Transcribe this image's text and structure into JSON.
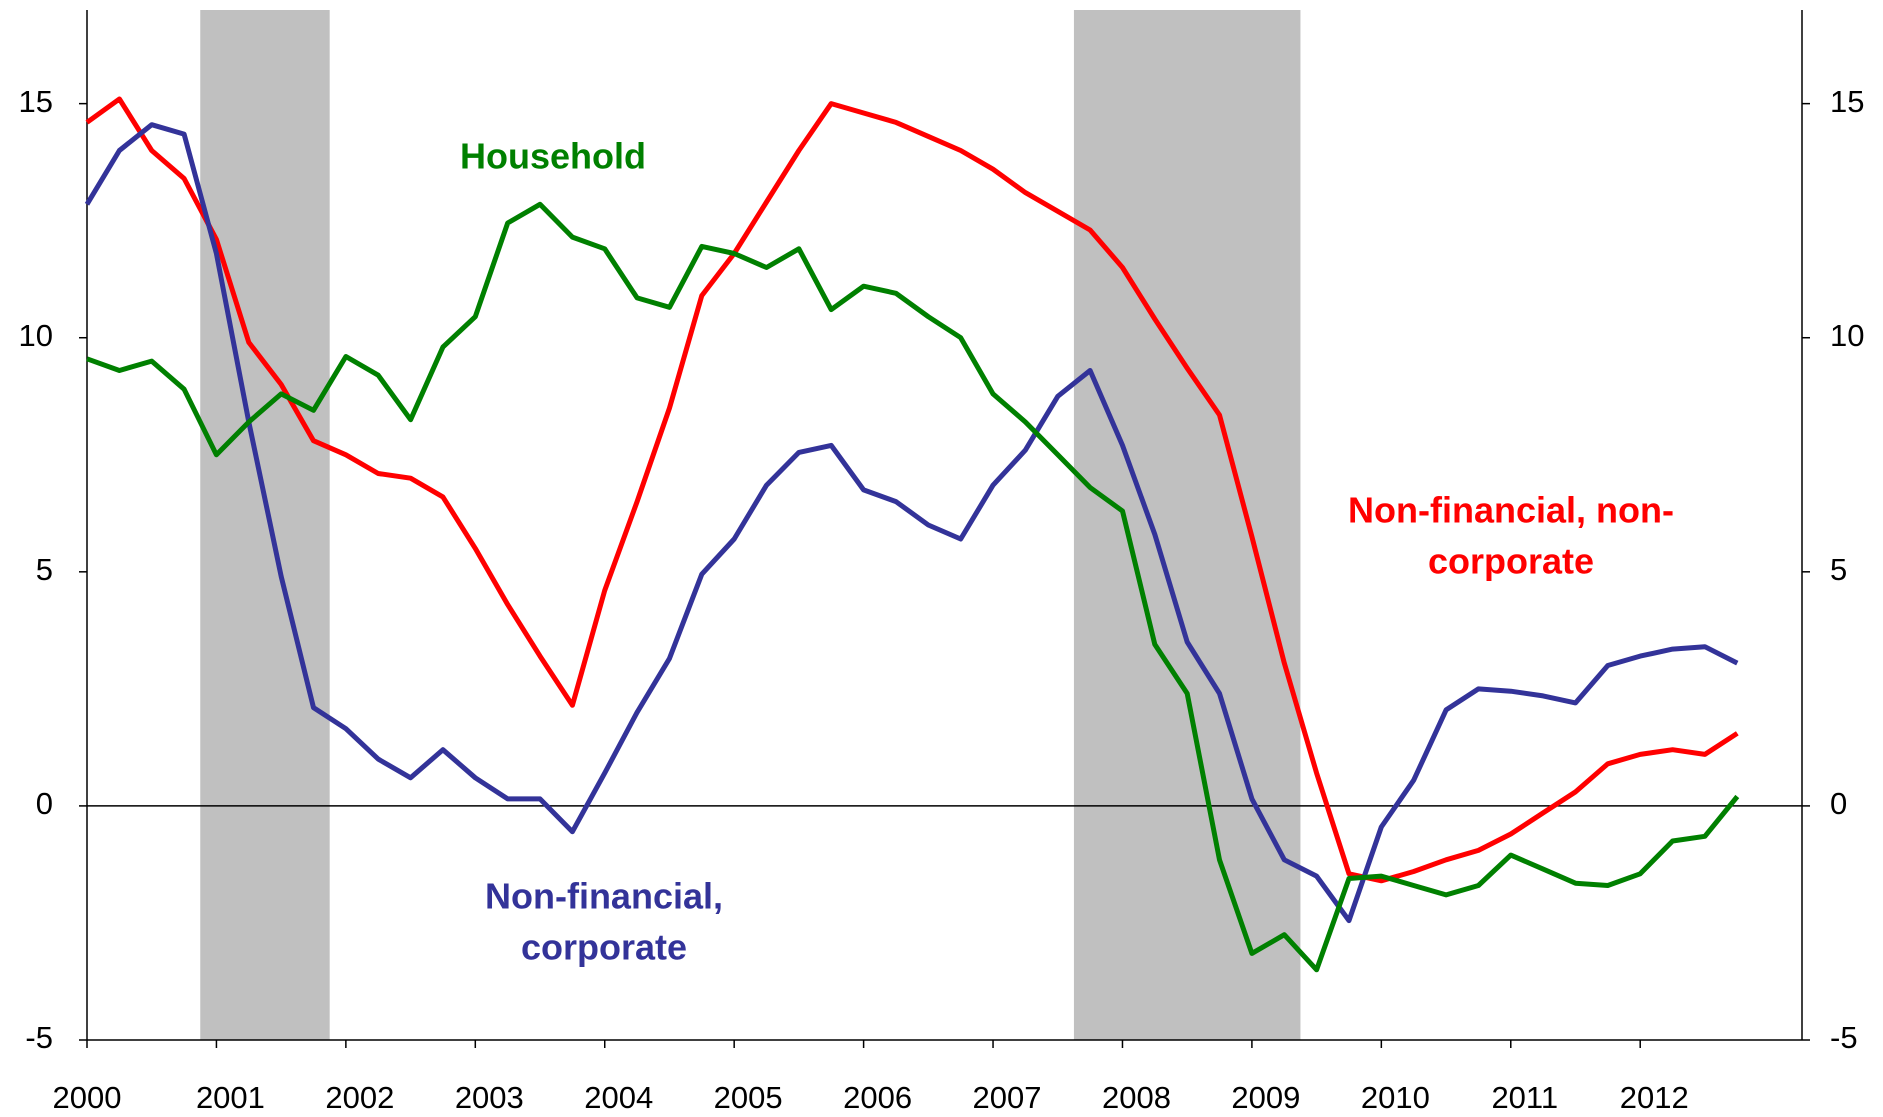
{
  "chart_data": {
    "type": "line",
    "x": [
      2000,
      2000.25,
      2000.5,
      2000.75,
      2001,
      2001.25,
      2001.5,
      2001.75,
      2002,
      2002.25,
      2002.5,
      2002.75,
      2003,
      2003.25,
      2003.5,
      2003.75,
      2004,
      2004.25,
      2004.5,
      2004.75,
      2005,
      2005.25,
      2005.5,
      2005.75,
      2006,
      2006.25,
      2006.5,
      2006.75,
      2007,
      2007.25,
      2007.5,
      2007.75,
      2008,
      2008.25,
      2008.5,
      2008.75,
      2009,
      2009.25,
      2009.5,
      2009.75,
      2010,
      2010.25,
      2010.5,
      2010.75,
      2011,
      2011.25,
      2011.5,
      2011.75,
      2012,
      2012.25,
      2012.5,
      2012.75
    ],
    "series": [
      {
        "name": [
          "Non-financial, non-",
          "corporate"
        ],
        "color": "#ff0000",
        "values": [
          14.6,
          15.1,
          14.0,
          13.4,
          12.1,
          9.9,
          9.0,
          7.8,
          7.5,
          7.1,
          7.0,
          6.6,
          5.5,
          4.3,
          3.2,
          2.15,
          4.6,
          6.5,
          8.5,
          10.9,
          11.8,
          12.9,
          14.0,
          15.0,
          14.8,
          14.6,
          14.3,
          14.0,
          13.6,
          13.1,
          12.7,
          12.3,
          11.5,
          10.4,
          9.35,
          8.35,
          5.75,
          3.05,
          0.7,
          -1.45,
          -1.6,
          -1.4,
          -1.15,
          -0.95,
          -0.6,
          -0.15,
          0.3,
          0.9,
          1.1,
          1.2,
          1.1,
          1.55
        ]
      },
      {
        "name": [
          "Non-financial,",
          "corporate"
        ],
        "color": "#333399",
        "values": [
          12.85,
          14.0,
          14.55,
          14.35,
          11.8,
          8.2,
          4.9,
          2.1,
          1.65,
          1.0,
          0.6,
          1.2,
          0.6,
          0.15,
          0.15,
          -0.55,
          0.7,
          2.0,
          3.15,
          4.95,
          5.7,
          6.85,
          7.55,
          7.7,
          6.75,
          6.5,
          6.0,
          5.7,
          6.85,
          7.6,
          8.75,
          9.3,
          7.7,
          5.8,
          3.5,
          2.4,
          0.15,
          -1.15,
          -1.5,
          -2.45,
          -0.45,
          0.55,
          2.05,
          2.5,
          2.45,
          2.35,
          2.2,
          3.0,
          3.2,
          3.35,
          3.4,
          3.05
        ]
      },
      {
        "name": [
          "Household"
        ],
        "color": "#008000",
        "values": [
          9.55,
          9.3,
          9.5,
          8.9,
          7.5,
          8.2,
          8.8,
          8.45,
          9.6,
          9.2,
          8.25,
          9.8,
          10.45,
          12.45,
          12.85,
          12.15,
          11.9,
          10.85,
          10.65,
          11.95,
          11.8,
          11.5,
          11.9,
          10.6,
          11.1,
          10.95,
          10.45,
          10.0,
          8.8,
          8.2,
          7.5,
          6.8,
          6.3,
          3.45,
          2.4,
          -1.15,
          -3.15,
          -2.75,
          -3.5,
          -1.55,
          -1.5,
          -1.7,
          -1.9,
          -1.7,
          -1.05,
          -1.35,
          -1.65,
          -1.7,
          -1.45,
          -0.75,
          -0.65,
          0.2
        ]
      }
    ],
    "recessions": [
      [
        2000.875,
        2001.875
      ],
      [
        2007.625,
        2009.375
      ]
    ],
    "recession_color": "#c0c0c0",
    "xlim": [
      2000,
      2013.25
    ],
    "xticks": [
      2000,
      2001,
      2002,
      2003,
      2004,
      2005,
      2006,
      2007,
      2008,
      2009,
      2010,
      2011,
      2012
    ],
    "ylim": [
      -5,
      17
    ],
    "yticks": [
      -5,
      0,
      5,
      10,
      15
    ],
    "y2lim": [
      -5,
      17
    ],
    "y2ticks": [
      -5,
      0,
      5,
      10,
      15
    ]
  }
}
